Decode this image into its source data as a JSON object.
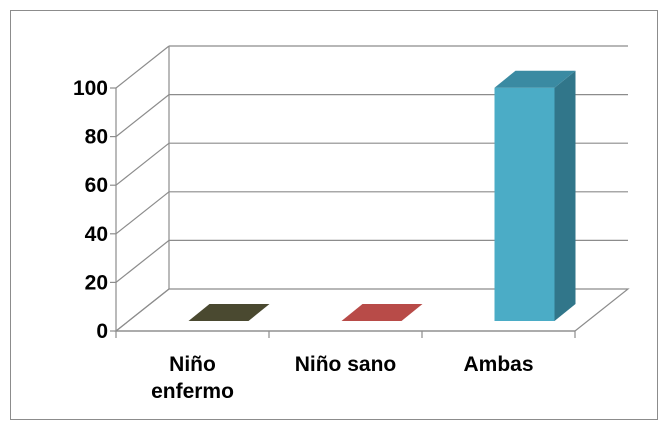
{
  "chart_data": {
    "type": "bar",
    "categories": [
      [
        "Niño",
        "enfermo"
      ],
      [
        "Niño sano"
      ],
      [
        "Ambas"
      ]
    ],
    "values": [
      0,
      0,
      100
    ],
    "colors": [
      "#3b3a22",
      "#a53b38",
      "#4bacc6"
    ],
    "side_colors": [
      "#2a2918",
      "#7a2b29",
      "#31768a"
    ],
    "top_colors": [
      "#4a4930",
      "#b84b48",
      "#3a8aa2"
    ],
    "yticks": [
      0,
      20,
      40,
      60,
      80,
      100
    ],
    "ylim": [
      0,
      100
    ],
    "title": "",
    "xlabel": "",
    "ylabel": "",
    "grid": true,
    "style": "3d-column"
  }
}
